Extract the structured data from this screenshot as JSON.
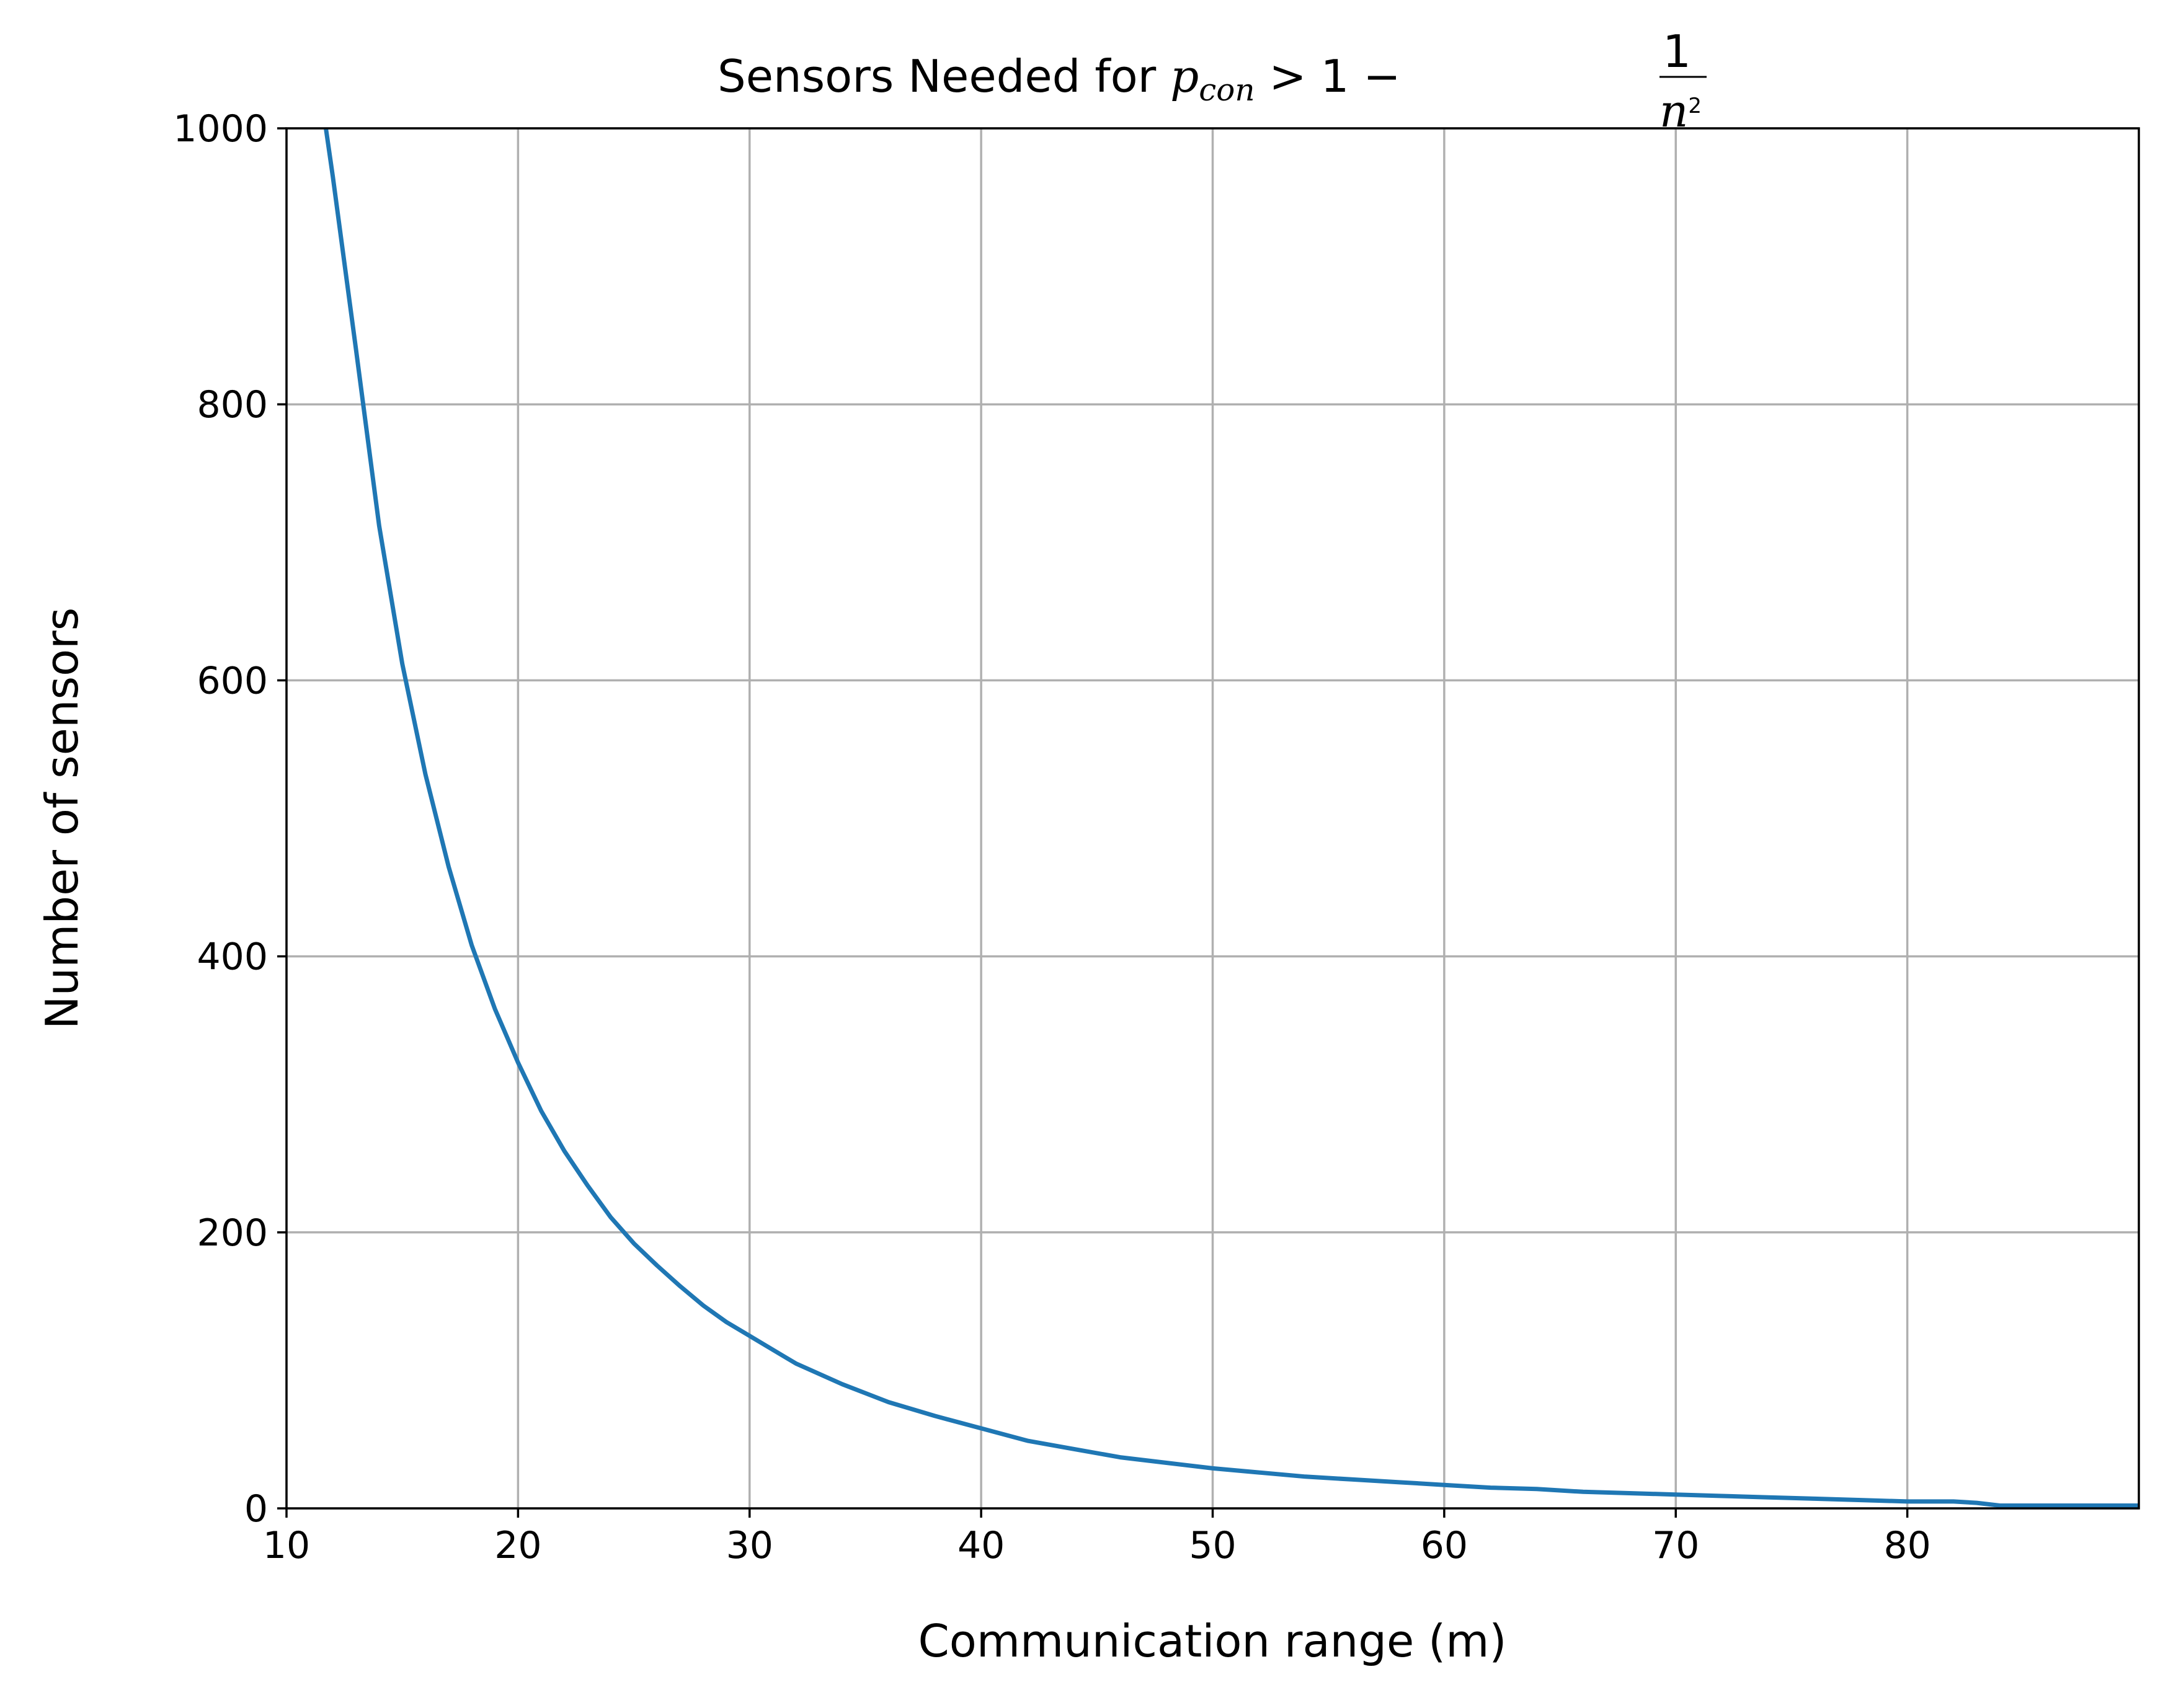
{
  "chart_data": {
    "type": "line",
    "title": {
      "prefix": "Sensors Needed for ",
      "p": "p",
      "sub": "con",
      "relation": " > 1 − ",
      "frac_num": "1",
      "frac_den_base": "n",
      "frac_den_exp": "2"
    },
    "xlabel": "Communication range (m)",
    "ylabel": "Number of sensors",
    "xlim": [
      10,
      90
    ],
    "ylim": [
      0,
      1000
    ],
    "xticks": [
      10,
      20,
      30,
      40,
      50,
      60,
      70,
      80
    ],
    "yticks": [
      0,
      200,
      400,
      600,
      800,
      1000
    ],
    "grid": true,
    "line_color": "#1f77b4",
    "series": [
      {
        "x": [
          11.7,
          12,
          13,
          14,
          15,
          16,
          17,
          18,
          19,
          20,
          21,
          22,
          23,
          24,
          25,
          26,
          27,
          28,
          29,
          30,
          32,
          34,
          36,
          38,
          40,
          42,
          44,
          46,
          48,
          50,
          52,
          54,
          56,
          58,
          60,
          62,
          64,
          66,
          68,
          70,
          72,
          74,
          76,
          78,
          80,
          82,
          83,
          84,
          86,
          88,
          90
        ],
        "y": [
          1000,
          965,
          840,
          712,
          612,
          532,
          465,
          408,
          362,
          323,
          288,
          259,
          234,
          211,
          192,
          176,
          161,
          147,
          135,
          125,
          105,
          90,
          77,
          67,
          58,
          49,
          43,
          37,
          33,
          29,
          26,
          23,
          21,
          19,
          17,
          15,
          14,
          12,
          11,
          10,
          9,
          8,
          7,
          6,
          5,
          5,
          4,
          2,
          2,
          2,
          2
        ]
      }
    ]
  }
}
